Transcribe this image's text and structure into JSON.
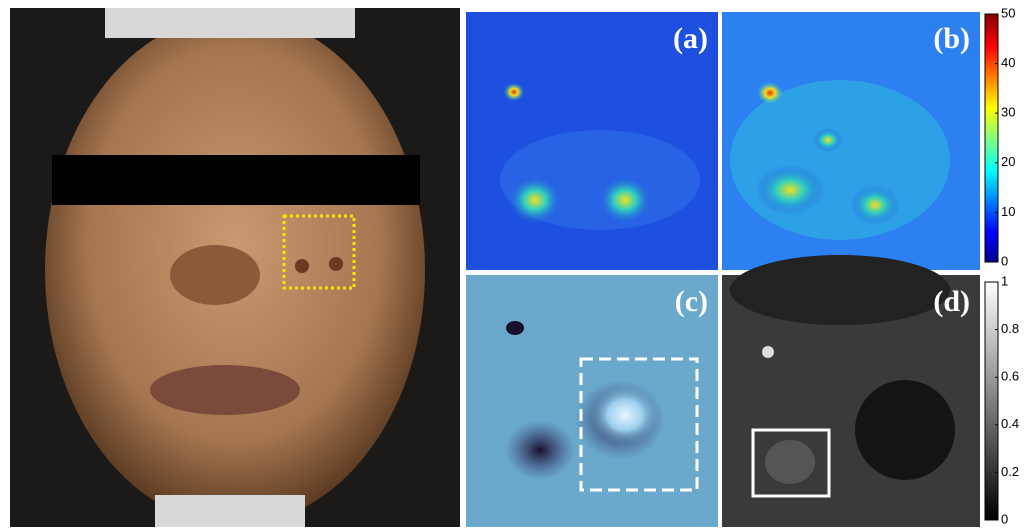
{
  "panels": [
    {
      "label": "(a)"
    },
    {
      "label": "(b)"
    },
    {
      "label": "(c)"
    },
    {
      "label": "(d)"
    }
  ],
  "colorbars": [
    {
      "lim": [
        0,
        50
      ],
      "ticks": [
        0,
        10,
        20,
        30,
        40,
        50
      ],
      "colormap": "jet"
    },
    {
      "lim": [
        0,
        1
      ],
      "ticks": [
        0,
        0.2,
        0.4,
        0.6,
        0.8,
        1
      ],
      "colormap": "gray"
    }
  ]
}
